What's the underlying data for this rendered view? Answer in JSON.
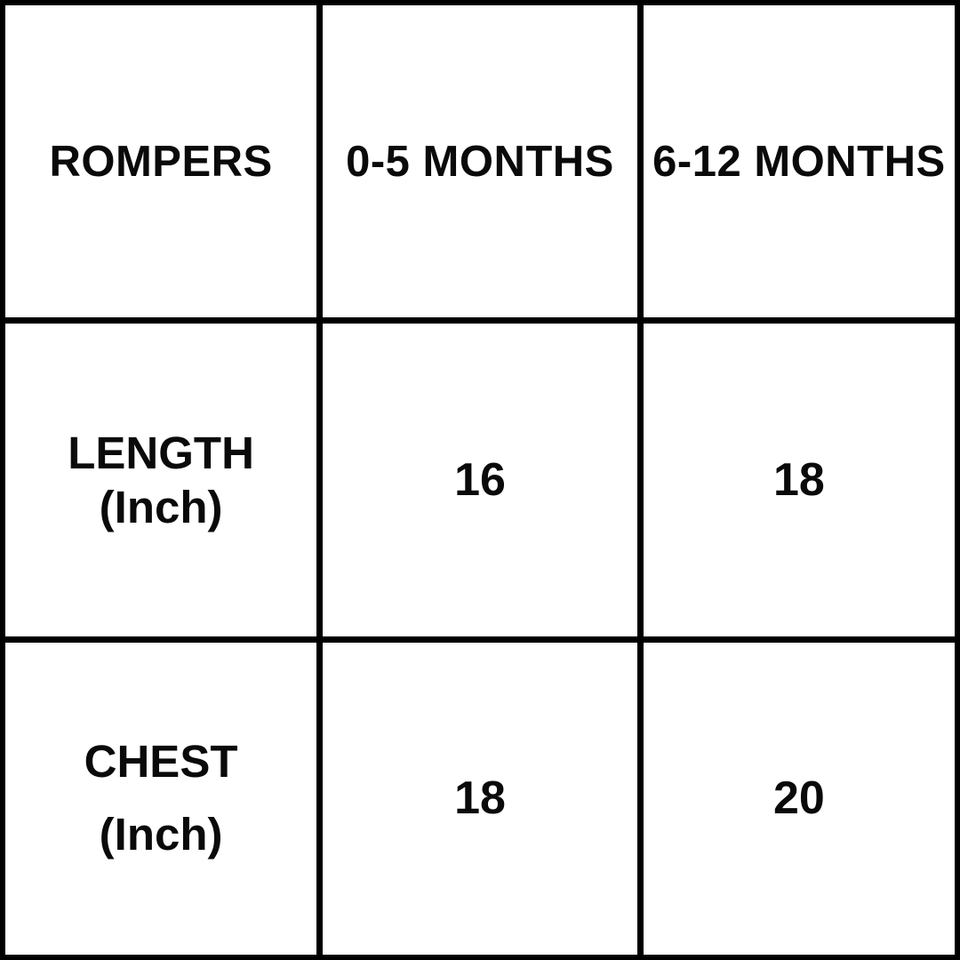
{
  "chart_data": {
    "type": "table",
    "columns": [
      "ROMPERS",
      "0-5 MONTHS",
      "6-12 MONTHS"
    ],
    "rows": [
      [
        "LENGTH (Inch)",
        "16",
        "18"
      ],
      [
        "CHEST (Inch)",
        "18",
        "20"
      ]
    ]
  },
  "table": {
    "headers": {
      "product": "ROMPERS",
      "size1": "0-5 MONTHS",
      "size2": "6-12 MONTHS"
    },
    "length_row": {
      "label": "LENGTH",
      "unit": "(Inch)",
      "value_0_5": "16",
      "value_6_12": "18"
    },
    "chest_row": {
      "label": "CHEST",
      "unit": "(Inch)",
      "value_0_5": "18",
      "value_6_12": "20"
    }
  },
  "colors": {
    "border": "#000000",
    "cell_background": "#ffffff",
    "text": "#0a0a0a"
  }
}
